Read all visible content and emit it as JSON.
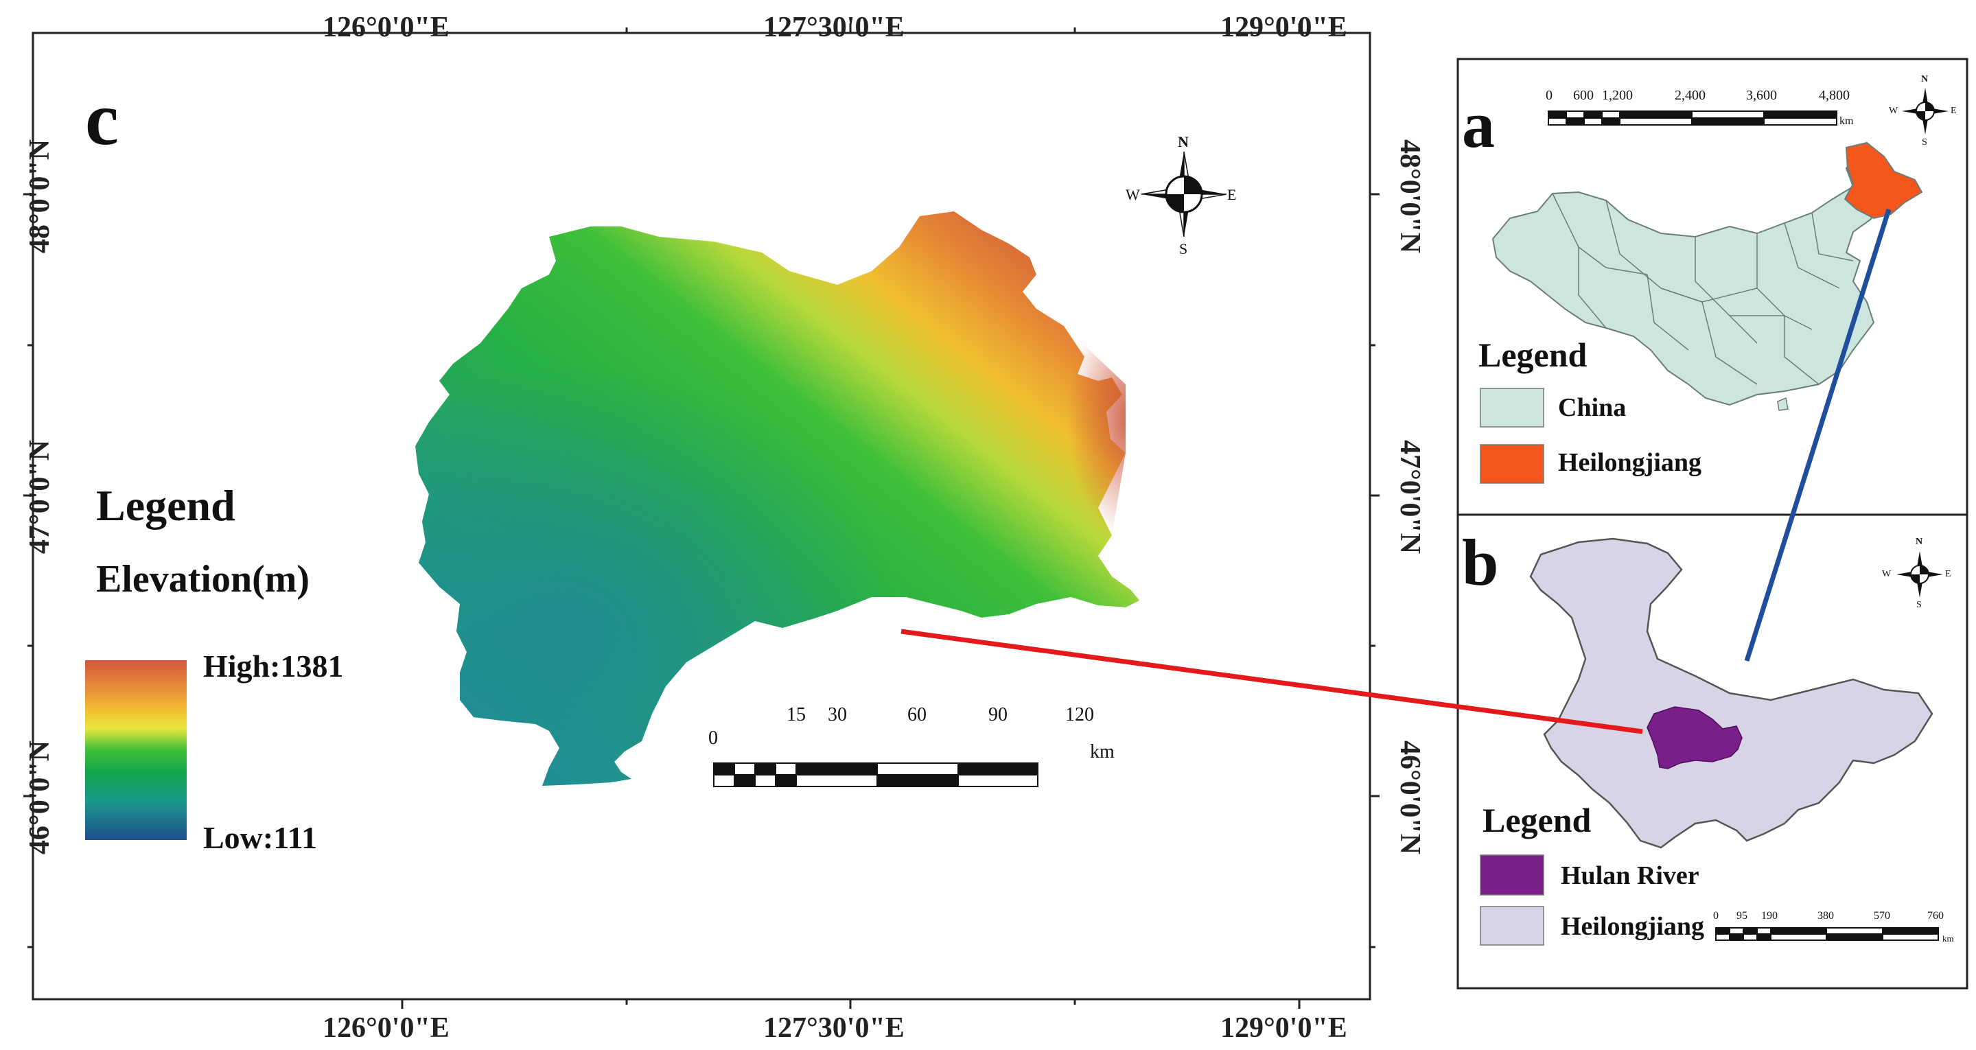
{
  "main_panel": {
    "letter": "c",
    "lon_top": [
      "126°0'0\"E",
      "127°30'0\"E",
      "129°0'0\"E"
    ],
    "lon_bottom": [
      "126°0'0\"E",
      "127°30'0\"E",
      "129°0'0\"E"
    ],
    "lat_left": [
      "48°0'0\"N",
      "47°0'0\"N",
      "46°0'0\"N"
    ],
    "lat_right": [
      "48°0'0\"N",
      "47°0'0\"N",
      "46°0'0\"N"
    ],
    "legend": {
      "title": "Legend",
      "subtitle": "Elevation(m)",
      "high": "High:1381",
      "low": "Low:111"
    },
    "scale": {
      "labels": [
        "0",
        "15",
        "30",
        "60",
        "90",
        "120"
      ],
      "unit": "km"
    },
    "compass": {
      "n": "N",
      "s": "S",
      "e": "E",
      "w": "W"
    }
  },
  "panel_a": {
    "letter": "a",
    "scale": {
      "labels": [
        "0",
        "600",
        "1,200",
        "2,400",
        "3,600",
        "4,800"
      ],
      "unit": "km"
    },
    "compass": {
      "n": "N",
      "s": "S",
      "e": "E",
      "w": "W"
    },
    "legend": {
      "title": "Legend",
      "items": [
        {
          "label": "China",
          "color": "#cce6df"
        },
        {
          "label": "Heilongjiang",
          "color": "#f4561c"
        }
      ]
    }
  },
  "panel_b": {
    "letter": "b",
    "scale": {
      "labels": [
        "0",
        "95",
        "190",
        "380",
        "570",
        "760"
      ],
      "unit": "km"
    },
    "compass": {
      "n": "N",
      "s": "S",
      "e": "E",
      "w": "W"
    },
    "legend": {
      "title": "Legend",
      "items": [
        {
          "label": "Hulan River",
          "color": "#7a1f8a"
        },
        {
          "label": "Heilongjiang",
          "color": "#d9d3e8"
        }
      ]
    }
  },
  "colors": {
    "connector_red": "#e4191c",
    "connector_blue": "#1f4e9c",
    "elevation_high": "#d0593b",
    "elevation_low": "#1f5c8f"
  }
}
